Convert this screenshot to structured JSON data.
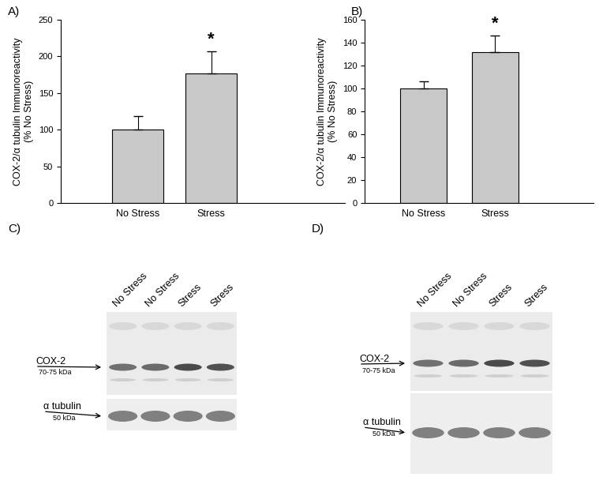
{
  "chart_data": [
    {
      "type": "bar",
      "title": "A)",
      "categories": [
        "No Stress",
        "Stress"
      ],
      "values": [
        100,
        177
      ],
      "errors": [
        18,
        30
      ],
      "color": "#c8c8c8",
      "y_label": "COX-2/α tubulin Immunoreactivity\n(% No Stress)",
      "ylim": [
        0,
        250
      ],
      "yticks": [
        0,
        50,
        100,
        150,
        200,
        250
      ],
      "annotations": [
        {
          "text": "*",
          "x": "Stress"
        }
      ]
    },
    {
      "type": "bar",
      "title": "B)",
      "categories": [
        "No Stress",
        "Stress"
      ],
      "values": [
        100,
        132
      ],
      "errors": [
        6,
        14
      ],
      "color": "#c8c8c8",
      "y_label": "COX-2/α tubulin Immunoreactivity\n(% No Stress)",
      "ylim": [
        0,
        160
      ],
      "yticks": [
        0,
        20,
        40,
        60,
        80,
        100,
        120,
        140,
        160
      ],
      "annotations": [
        {
          "text": "*",
          "x": "Stress"
        }
      ]
    }
  ],
  "blots": [
    {
      "title": "C)",
      "lanes": [
        "No Stress",
        "No Stress",
        "Stress",
        "Stress"
      ],
      "bands": [
        {
          "label": "COX-2",
          "size": "70-75 kDa"
        },
        {
          "label": "α tubulin",
          "size": "50 kDa"
        }
      ]
    },
    {
      "title": "D)",
      "lanes": [
        "No Stress",
        "No Stress",
        "Stress",
        "Stress"
      ],
      "bands": [
        {
          "label": "COX-2",
          "size": "70-75 kDa"
        },
        {
          "label": "α tubulin",
          "size": "50 kDa"
        }
      ]
    }
  ]
}
